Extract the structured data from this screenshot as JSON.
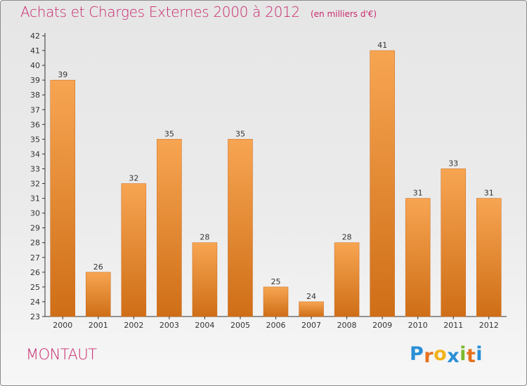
{
  "title": "Achats et Charges Externes 2000 à 2012",
  "subtitle": "(en milliers d'€)",
  "commune": "MONTAUT",
  "brand": {
    "letters": [
      "P",
      "r",
      "o",
      "x",
      "i",
      "t",
      "i"
    ],
    "colors": [
      "#2a8fd6",
      "#e6711d",
      "#f2b21b",
      "#2a8fd6",
      "#7cb92c",
      "#e6711d",
      "#2a8fd6"
    ]
  },
  "colors": {
    "accent": "#c8286e",
    "bar_light": "#f7a552",
    "bar_dark": "#cf6e17",
    "axis": "#333333"
  },
  "chart_data": {
    "type": "bar",
    "title": "Achats et Charges Externes 2000 à 2012",
    "subtitle": "(en milliers d'€)",
    "categories": [
      "2000",
      "2001",
      "2002",
      "2003",
      "2004",
      "2005",
      "2006",
      "2007",
      "2008",
      "2009",
      "2010",
      "2011",
      "2012"
    ],
    "values": [
      39,
      26,
      32,
      35,
      28,
      35,
      25,
      24,
      28,
      41,
      31,
      33,
      31
    ],
    "ylim": [
      23,
      42
    ],
    "yticks": [
      23,
      24,
      25,
      26,
      27,
      28,
      29,
      30,
      31,
      32,
      33,
      34,
      35,
      36,
      37,
      38,
      39,
      40,
      41,
      42
    ],
    "grid": false,
    "data_labels": true
  }
}
